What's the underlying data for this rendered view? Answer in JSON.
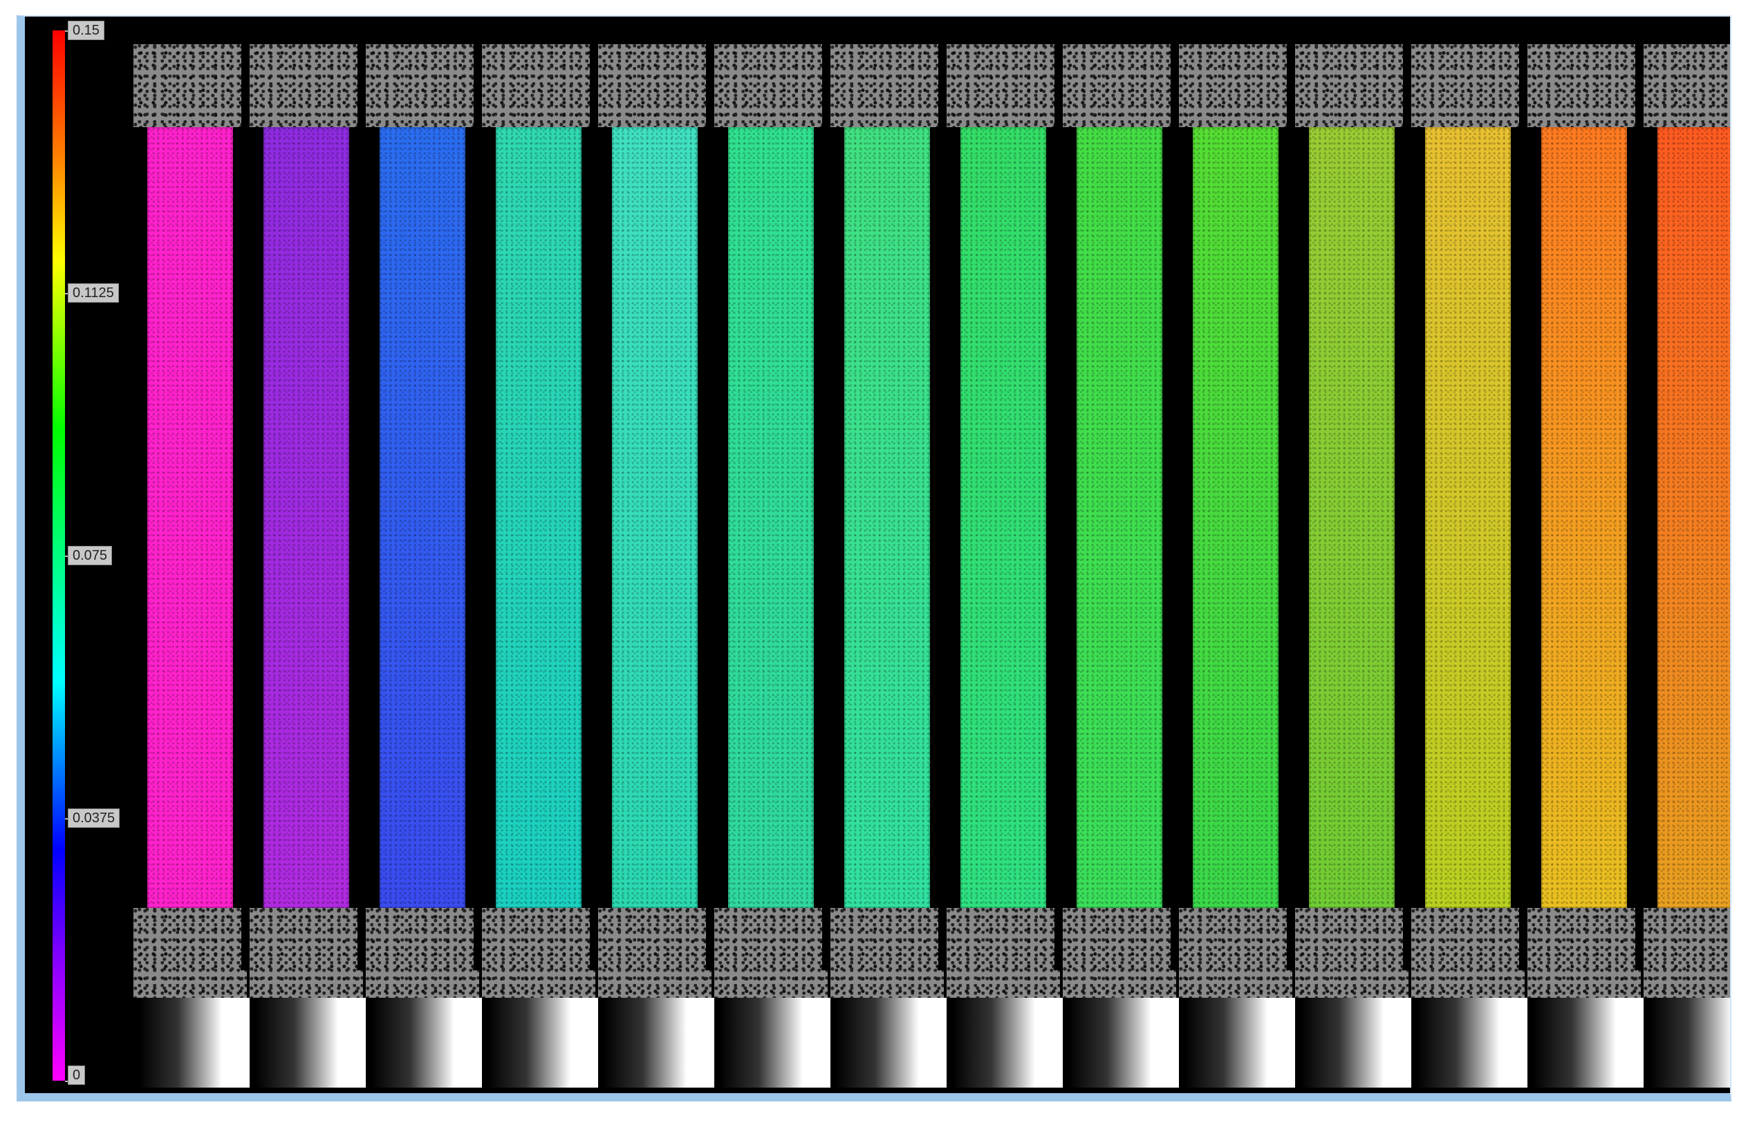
{
  "colorbar": {
    "labels": [
      "0.15",
      "0.1125",
      "0.075",
      "0.0375",
      "0"
    ]
  },
  "strips": [
    {
      "top": "#ff22cc",
      "bot": "#ff22cc"
    },
    {
      "top": "#8e2be0",
      "bot": "#b02ae0"
    },
    {
      "top": "#2a6df0",
      "bot": "#3a4bf0"
    },
    {
      "top": "#2fd8b0",
      "bot": "#1ad0c0"
    },
    {
      "top": "#3fe0c0",
      "bot": "#2ad8b0"
    },
    {
      "top": "#30e090",
      "bot": "#2fd8a0"
    },
    {
      "top": "#40e080",
      "bot": "#30e0a0"
    },
    {
      "top": "#33dd66",
      "bot": "#2ee080"
    },
    {
      "top": "#44dd44",
      "bot": "#3ade5a"
    },
    {
      "top": "#55dd33",
      "bot": "#3ad84a"
    },
    {
      "top": "#9acc33",
      "bot": "#70cc33"
    },
    {
      "top": "#e8c030",
      "bot": "#b8d020"
    },
    {
      "top": "#ff7a20",
      "bot": "#e8c020"
    },
    {
      "top": "#ff5a20",
      "bot": "#e8a020"
    }
  ]
}
